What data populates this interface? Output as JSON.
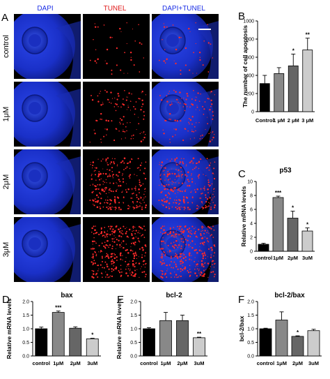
{
  "panel_a": {
    "label": "A",
    "col_headers": [
      {
        "text": "DAPI",
        "color": "#1a2ee6"
      },
      {
        "text": "TUNEL",
        "color": "#e01a1a"
      },
      {
        "text": "DAPI+TUNEL",
        "color": "#1a2ee6"
      }
    ],
    "rows": [
      "control",
      "1μM",
      "2μM",
      "3μM"
    ]
  },
  "colors": {
    "black": "#000000",
    "dark_gray": "#666666",
    "mid_gray": "#888888",
    "light_gray": "#cccccc",
    "panel_bg": "#000000",
    "nucleus_blue": "#1e38d8",
    "apoptosis_red": "#ff2a2a"
  },
  "chart_data": [
    {
      "id": "B",
      "label": "B",
      "type": "bar",
      "title": "",
      "ylabel": "The number of cell apoptosis",
      "categories": [
        "Control",
        "1 μM",
        "2 μM",
        "3 μM"
      ],
      "values": [
        310,
        420,
        505,
        680
      ],
      "errors": [
        90,
        65,
        130,
        130
      ],
      "significance": [
        "",
        "",
        "*",
        "**"
      ],
      "ylim": [
        0,
        1000
      ],
      "yticks": [
        0,
        200,
        400,
        600,
        800,
        1000
      ],
      "bar_colors": [
        "#000000",
        "#888888",
        "#666666",
        "#cccccc"
      ]
    },
    {
      "id": "C",
      "label": "C",
      "type": "bar",
      "title": "p53",
      "ylabel": "Relative mRNA levels",
      "categories": [
        "control",
        "1μM",
        "2μM",
        "3uM"
      ],
      "values": [
        1.0,
        7.7,
        4.75,
        2.9
      ],
      "errors": [
        0.15,
        0.2,
        1.0,
        0.45
      ],
      "significance": [
        "",
        "***",
        "*",
        "*"
      ],
      "ylim": [
        0,
        10
      ],
      "yticks": [
        0,
        2,
        4,
        6,
        8,
        10
      ],
      "bar_colors": [
        "#000000",
        "#888888",
        "#666666",
        "#cccccc"
      ]
    },
    {
      "id": "D",
      "label": "D",
      "type": "bar",
      "title": "bax",
      "ylabel": "Relative mRNA levels",
      "categories": [
        "control",
        "1μM",
        "2μM",
        "3uM"
      ],
      "values": [
        1.0,
        1.6,
        1.02,
        0.63
      ],
      "errors": [
        0.06,
        0.05,
        0.05,
        0.02
      ],
      "significance": [
        "",
        "***",
        "",
        "*"
      ],
      "ylim": [
        0,
        2.0
      ],
      "yticks": [
        0.0,
        0.5,
        1.0,
        1.5,
        2.0
      ],
      "tick_decimals": 1,
      "bar_colors": [
        "#000000",
        "#888888",
        "#666666",
        "#cccccc"
      ]
    },
    {
      "id": "E",
      "label": "E",
      "type": "bar",
      "title": "bcl-2",
      "ylabel": "Relative mRNA levels",
      "categories": [
        "control",
        "1μM",
        "2μM",
        "3uM"
      ],
      "values": [
        1.0,
        1.3,
        1.3,
        0.67
      ],
      "errors": [
        0.04,
        0.3,
        0.2,
        0.02
      ],
      "significance": [
        "",
        "",
        "",
        "**"
      ],
      "ylim": [
        0,
        2.0
      ],
      "yticks": [
        0.0,
        0.5,
        1.0,
        1.5,
        2.0
      ],
      "tick_decimals": 1,
      "bar_colors": [
        "#000000",
        "#888888",
        "#666666",
        "#cccccc"
      ]
    },
    {
      "id": "F",
      "label": "F",
      "type": "bar",
      "title": "bcl-2/bax",
      "ylabel": "bcl-2/bax",
      "categories": [
        "control",
        "1μM",
        "2μM",
        "3uM"
      ],
      "values": [
        1.0,
        1.32,
        0.72,
        0.93
      ],
      "errors": [
        0.02,
        0.3,
        0.02,
        0.05
      ],
      "significance": [
        "",
        "",
        "*",
        ""
      ],
      "ylim": [
        0,
        2.0
      ],
      "yticks": [
        0.0,
        0.5,
        1.0,
        1.5,
        2.0
      ],
      "tick_decimals": 1,
      "bar_colors": [
        "#000000",
        "#888888",
        "#666666",
        "#cccccc"
      ]
    }
  ]
}
